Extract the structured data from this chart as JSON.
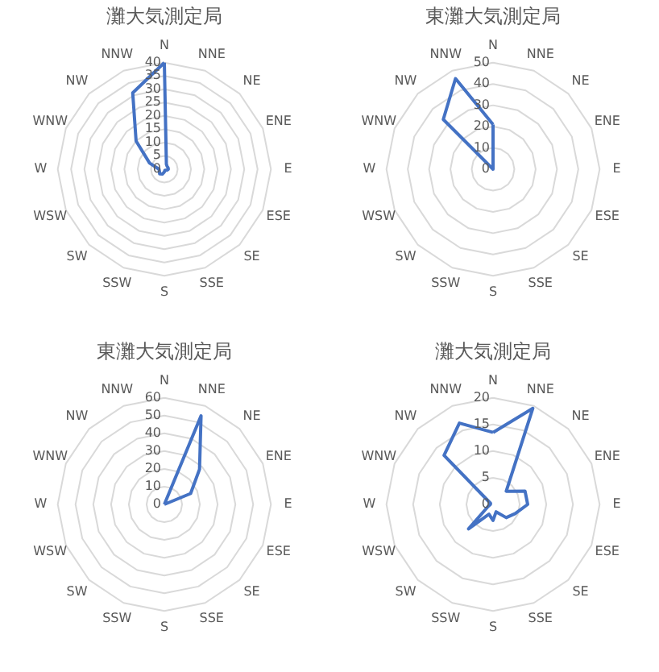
{
  "chart_data": [
    {
      "type": "radar",
      "title": "灘大気測定局",
      "categories": [
        "N",
        "NNE",
        "NE",
        "ENE",
        "E",
        "ESE",
        "SE",
        "SSE",
        "S",
        "SSW",
        "SW",
        "WSW",
        "W",
        "WNW",
        "NW",
        "NNW"
      ],
      "series": [
        {
          "color": "#4472c4",
          "values": [
            40,
            2,
            1.5,
            1.5,
            1.5,
            1,
            0.5,
            0.5,
            1,
            2,
            2.5,
            2,
            2,
            6,
            15,
            31
          ]
        }
      ],
      "ylim": [
        0,
        40
      ],
      "yticks": [
        0,
        5,
        10,
        15,
        20,
        25,
        30,
        35,
        40
      ],
      "grid": true
    },
    {
      "type": "radar",
      "title": "東灘大気測定局",
      "categories": [
        "N",
        "NNE",
        "NE",
        "ENE",
        "E",
        "ESE",
        "SE",
        "SSE",
        "S",
        "SSW",
        "SW",
        "WSW",
        "W",
        "WNW",
        "NW",
        "NNW"
      ],
      "series": [
        {
          "color": "#4472c4",
          "values": [
            21,
            0,
            0,
            0,
            0,
            0,
            0,
            0,
            0,
            0,
            0,
            0,
            0,
            0,
            33,
            46
          ]
        }
      ],
      "ylim": [
        0,
        50
      ],
      "yticks": [
        0,
        10,
        20,
        30,
        40,
        50
      ],
      "grid": true
    },
    {
      "type": "radar",
      "title": "東灘大気測定局",
      "categories": [
        "N",
        "NNE",
        "NE",
        "ENE",
        "E",
        "ESE",
        "SE",
        "SSE",
        "S",
        "SSW",
        "SW",
        "WSW",
        "W",
        "WNW",
        "NW",
        "NNW"
      ],
      "series": [
        {
          "color": "#4472c4",
          "values": [
            0,
            54,
            28,
            16,
            0,
            0,
            0,
            0,
            0,
            0,
            0,
            0,
            0,
            0,
            0,
            0
          ]
        }
      ],
      "ylim": [
        0,
        60
      ],
      "yticks": [
        0,
        10,
        20,
        30,
        40,
        50,
        60
      ],
      "grid": true
    },
    {
      "type": "radar",
      "title": "灘大気測定局",
      "categories": [
        "N",
        "NNE",
        "NE",
        "ENE",
        "E",
        "ESE",
        "SE",
        "SSE",
        "S",
        "SSW",
        "SW",
        "WSW",
        "W",
        "WNW",
        "NW",
        "NNW"
      ],
      "series": [
        {
          "color": "#4472c4",
          "values": [
            13.5,
            19.5,
            3.5,
            6.5,
            6.5,
            4.5,
            3.5,
            1.5,
            3,
            2,
            6.5,
            1,
            0.5,
            0.5,
            13,
            16.5
          ]
        }
      ],
      "ylim": [
        0,
        20
      ],
      "yticks": [
        0,
        5,
        10,
        15,
        20
      ],
      "grid": true
    }
  ]
}
